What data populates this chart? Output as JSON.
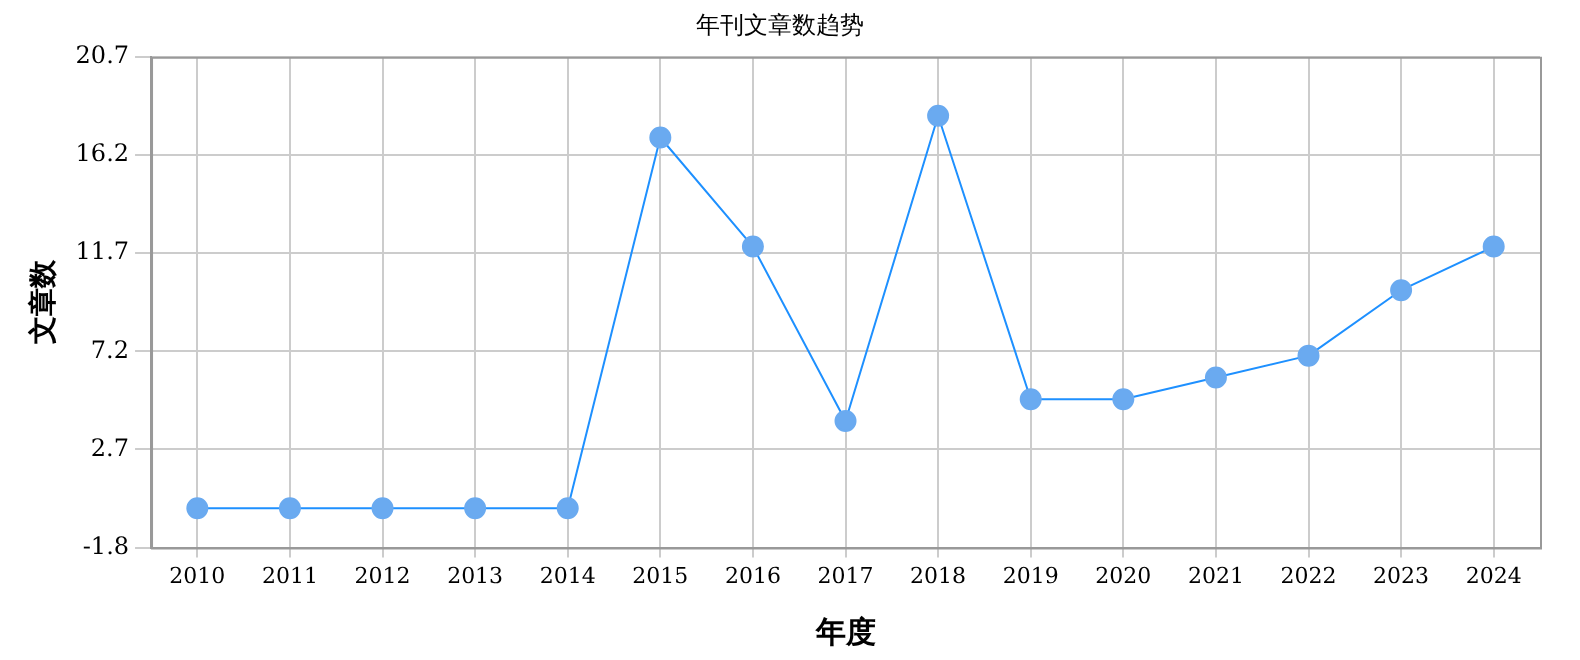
{
  "chart_data": {
    "type": "line",
    "title": "年刊文章数趋势",
    "xlabel": "年度",
    "ylabel": "文章数",
    "categories": [
      "2010",
      "2011",
      "2012",
      "2013",
      "2014",
      "2015",
      "2016",
      "2017",
      "2018",
      "2019",
      "2020",
      "2021",
      "2022",
      "2023",
      "2024"
    ],
    "series": [
      {
        "color": "#1e90ff",
        "values": [
          0,
          0,
          0,
          0,
          0,
          17,
          12,
          4,
          18,
          5,
          5,
          6,
          7,
          10,
          12
        ]
      }
    ],
    "ylim": [
      -1.8,
      20.7
    ],
    "yticks": [
      -1.8,
      2.7,
      7.2,
      11.7,
      16.2,
      20.7
    ],
    "grid": true,
    "legend": false,
    "marker": "circle",
    "line_style": "solid"
  }
}
